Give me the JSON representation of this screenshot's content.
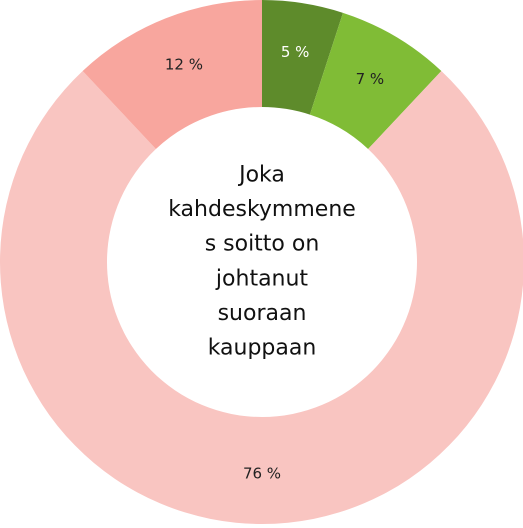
{
  "chart_data": {
    "type": "donut",
    "categories": [
      null,
      null,
      null,
      null
    ],
    "values": [
      5,
      7,
      76,
      12
    ],
    "value_labels": [
      "5 %",
      "7 %",
      "76 %",
      "12 %"
    ],
    "colors": [
      "#5e8b2b",
      "#80bc36",
      "#f9c5c1",
      "#f8a69e"
    ],
    "label_colors": [
      "#ffffff",
      "#222222",
      "#222222",
      "#222222"
    ],
    "center_text": [
      "Joka",
      "kahdeskymmene",
      "s soitto on",
      "johtanut",
      "suoraan",
      "kauppaan"
    ]
  }
}
